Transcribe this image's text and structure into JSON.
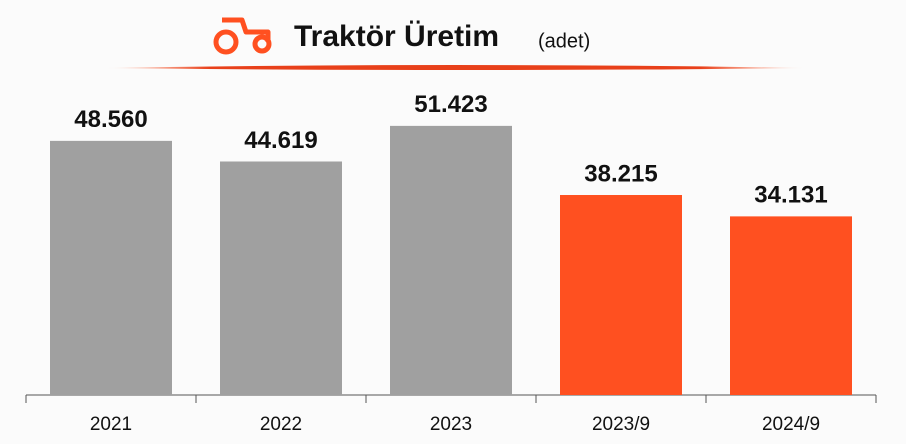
{
  "chart_data": {
    "type": "bar",
    "title": "Traktör Üretim",
    "subtitle": "(adet)",
    "categories": [
      "2021",
      "2022",
      "2023",
      "2023/9",
      "2024/9"
    ],
    "values": [
      48560,
      44619,
      51423,
      38215,
      34131
    ],
    "value_labels": [
      "48.560",
      "44.619",
      "51.423",
      "38.215",
      "34.131"
    ],
    "colors": [
      "#a0a0a0",
      "#a0a0a0",
      "#a0a0a0",
      "#ff5020",
      "#ff5020"
    ],
    "ylim": [
      0,
      60000
    ]
  }
}
